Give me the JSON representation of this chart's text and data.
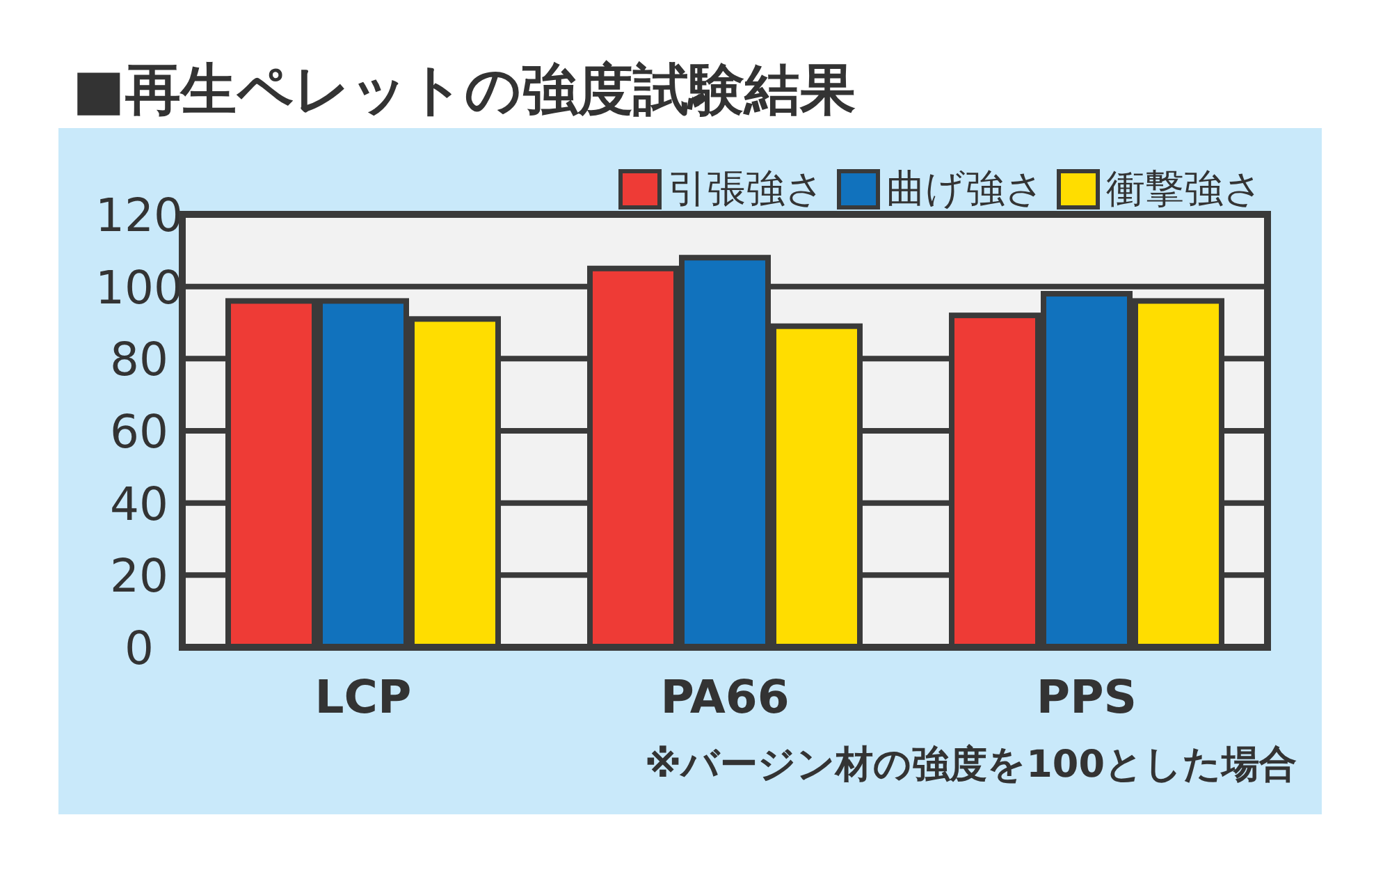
{
  "chart_data": {
    "type": "bar",
    "title": "■再生ペレットの強度試験結果",
    "categories": [
      "LCP",
      "PA66",
      "PPS"
    ],
    "series": [
      {
        "name": "引張強さ",
        "color": "#ee3b36",
        "values": [
          96,
          105,
          92
        ]
      },
      {
        "name": "曲げ強さ",
        "color": "#1172bd",
        "values": [
          96,
          108,
          98
        ]
      },
      {
        "name": "衝撃強さ",
        "color": "#ffdd00",
        "values": [
          91,
          89,
          96
        ]
      }
    ],
    "ylim": [
      0,
      120
    ],
    "yticks": [
      0,
      20,
      40,
      60,
      80,
      100,
      120
    ],
    "grid": "y",
    "legend": "top right",
    "annotations": [
      "※バージン材の強度を100とした場合"
    ]
  }
}
